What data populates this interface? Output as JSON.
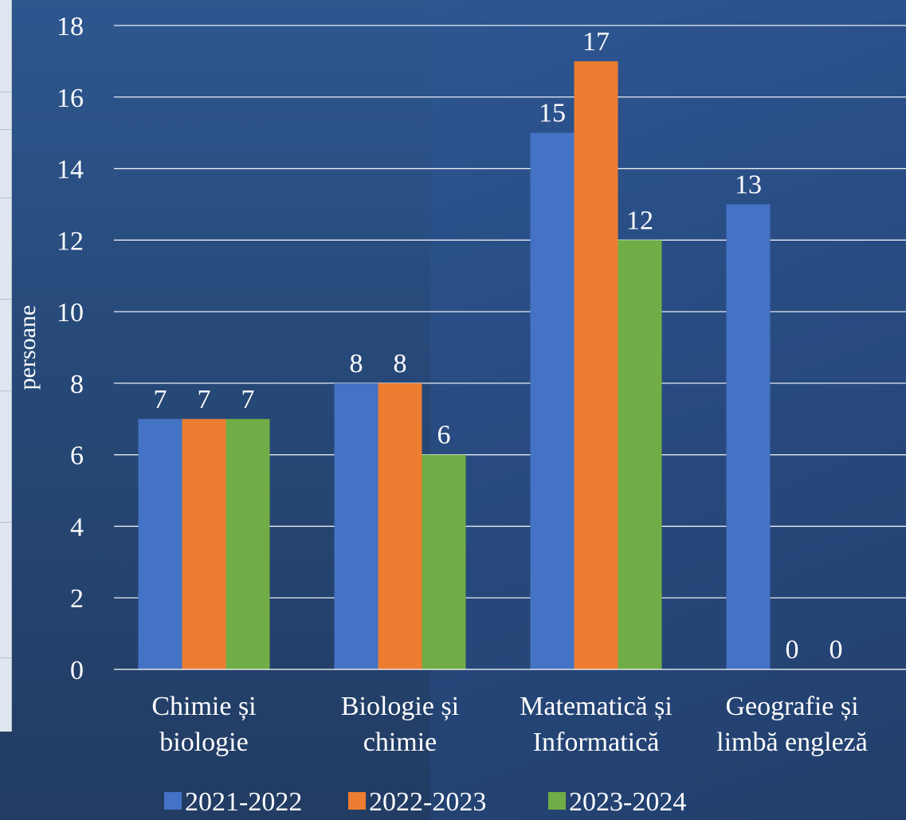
{
  "chart_data": {
    "type": "bar",
    "title": "",
    "xlabel": "",
    "ylabel": "persoane",
    "ylim": [
      0,
      18
    ],
    "y_ticks": [
      0,
      2,
      4,
      6,
      8,
      10,
      12,
      14,
      16,
      18
    ],
    "grid": true,
    "legend_position": "bottom",
    "categories": [
      [
        "Chimie și",
        "biologie"
      ],
      [
        "Biologie și",
        "chimie"
      ],
      [
        "Matematică și",
        "Informatică"
      ],
      [
        "Geografie și",
        "limbă engleză"
      ]
    ],
    "series": [
      {
        "name": "2021-2022",
        "color": "#4472c4",
        "values": [
          7,
          8,
          15,
          13
        ]
      },
      {
        "name": "2022-2023",
        "color": "#ed7d31",
        "values": [
          7,
          8,
          17,
          0
        ]
      },
      {
        "name": "2023-2024",
        "color": "#70ad47",
        "values": [
          7,
          6,
          12,
          0
        ]
      }
    ]
  }
}
